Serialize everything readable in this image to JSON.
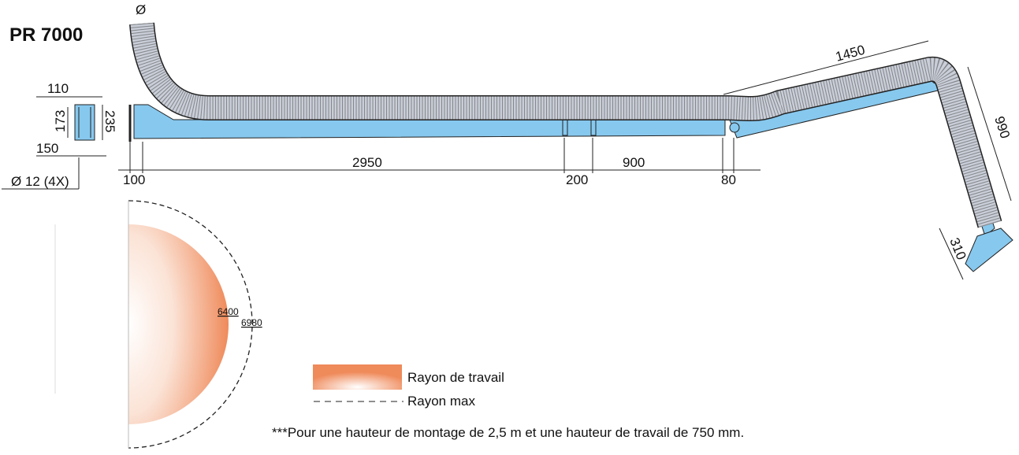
{
  "header": {
    "title": "PR 7000"
  },
  "dimensions": {
    "hose_diameter": "Ø",
    "plate_width": "110",
    "plate_height": "173",
    "plate_depth": "235",
    "plate_outer": "150",
    "bolts": "Ø 12 (4X)",
    "offset": "100",
    "arm1": "2950",
    "joint": "200",
    "arm2": "900",
    "end": "80",
    "arm3": "1450",
    "arm4": "990",
    "hood": "310"
  },
  "radius": {
    "work": "6400",
    "max": "6980"
  },
  "legend": {
    "work": "Rayon de travail",
    "max": "Rayon max"
  },
  "footnote": "***Pour une hauteur de montage de 2,5 m et une hauteur de travail de 750 mm."
}
